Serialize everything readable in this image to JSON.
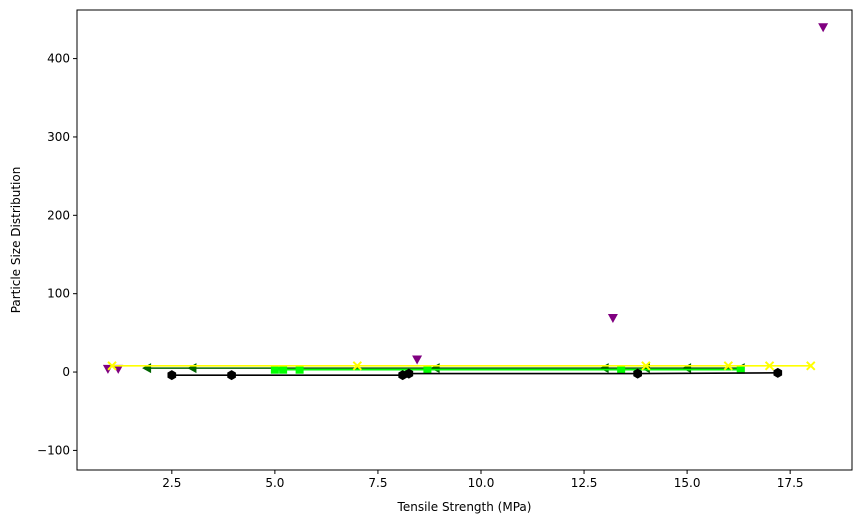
{
  "chart_data": {
    "type": "scatter",
    "title": "",
    "xlabel": "Tensile Strength (MPa)",
    "ylabel": "Particle Size Distribution",
    "xlim": [
      0.2,
      19.0
    ],
    "ylim": [
      -125,
      462
    ],
    "x_ticks": [
      2.5,
      5.0,
      7.5,
      10.0,
      12.5,
      15.0,
      17.5
    ],
    "x_tick_labels": [
      "2.5",
      "5.0",
      "7.5",
      "10.0",
      "12.5",
      "15.0",
      "17.5"
    ],
    "y_ticks": [
      -100,
      0,
      100,
      200,
      300,
      400
    ],
    "y_tick_labels": [
      "−100",
      "0",
      "100",
      "200",
      "300",
      "400"
    ],
    "grid": false,
    "legend": "none",
    "series": [
      {
        "color": "#800080",
        "marker": "triangle-down",
        "line": false,
        "points": [
          [
            0.95,
            4
          ],
          [
            1.2,
            4
          ],
          [
            8.45,
            16
          ],
          [
            13.2,
            69
          ],
          [
            18.3,
            440
          ]
        ]
      },
      {
        "color": "#006400",
        "marker": "triangle-left",
        "line": true,
        "points": [
          [
            1.9,
            5
          ],
          [
            3.0,
            5
          ],
          [
            8.9,
            5
          ],
          [
            13.0,
            5
          ],
          [
            14.0,
            5
          ],
          [
            15.0,
            5
          ],
          [
            16.3,
            5
          ]
        ]
      },
      {
        "color": "#00ff00",
        "marker": "square",
        "line": true,
        "points": [
          [
            5.0,
            3
          ],
          [
            5.2,
            3
          ],
          [
            5.6,
            3
          ],
          [
            8.7,
            3
          ],
          [
            13.4,
            3
          ],
          [
            16.3,
            3
          ]
        ]
      },
      {
        "color": "#000000",
        "marker": "hexagon",
        "line": true,
        "points": [
          [
            2.5,
            -4
          ],
          [
            3.95,
            -4
          ],
          [
            8.1,
            -4
          ],
          [
            8.25,
            -2
          ],
          [
            13.8,
            -2
          ],
          [
            17.2,
            -1
          ]
        ]
      },
      {
        "color": "#ffff00",
        "marker": "x",
        "line": true,
        "points": [
          [
            1.05,
            8
          ],
          [
            7.0,
            8
          ],
          [
            14.0,
            8
          ],
          [
            16.0,
            8
          ],
          [
            17.0,
            8
          ],
          [
            18.0,
            8
          ]
        ]
      }
    ]
  }
}
